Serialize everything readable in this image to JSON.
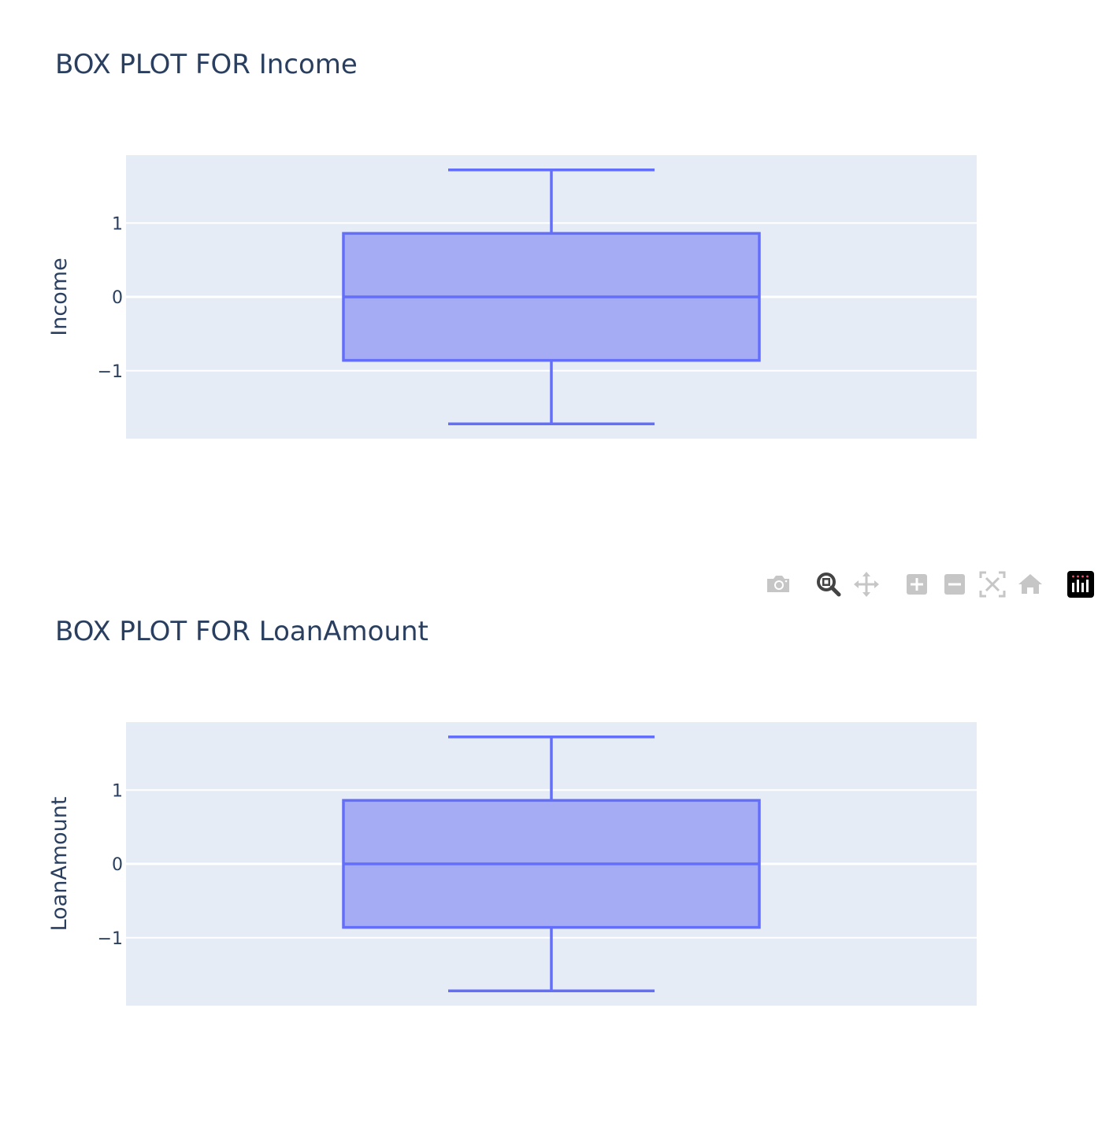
{
  "toolbar": {
    "buttons": [
      {
        "name": "download-plot-button",
        "icon": "camera-icon"
      },
      {
        "name": "zoom-button",
        "icon": "zoom-icon",
        "active": true
      },
      {
        "name": "pan-button",
        "icon": "pan-icon"
      },
      {
        "name": "zoom-in-button",
        "icon": "zoom-in-icon"
      },
      {
        "name": "zoom-out-button",
        "icon": "zoom-out-icon"
      },
      {
        "name": "autoscale-button",
        "icon": "autoscale-icon"
      },
      {
        "name": "reset-axes-button",
        "icon": "home-icon"
      },
      {
        "name": "plotly-logo-button",
        "icon": "plotly-logo-icon"
      }
    ]
  },
  "colors": {
    "box_line": "#636efa",
    "box_fill": "#a5acf4",
    "plot_bg": "#e5ecf6",
    "grid": "#ffffff",
    "text": "#2a3f5f"
  },
  "chart_data": [
    {
      "type": "box",
      "title": "BOX PLOT FOR Income",
      "ylabel": "Income",
      "xlabel": "",
      "ylim": [
        -1.92,
        1.92
      ],
      "yticks": [
        {
          "value": 1,
          "label": "1"
        },
        {
          "value": 0,
          "label": "0"
        },
        {
          "value": -1,
          "label": "−1"
        }
      ],
      "grid": true,
      "stats": {
        "lowerfence": -1.72,
        "q1": -0.86,
        "median": 0,
        "q3": 0.86,
        "upperfence": 1.72
      }
    },
    {
      "type": "box",
      "title": "BOX PLOT FOR LoanAmount",
      "ylabel": "LoanAmount",
      "xlabel": "",
      "ylim": [
        -1.92,
        1.92
      ],
      "yticks": [
        {
          "value": 1,
          "label": "1"
        },
        {
          "value": 0,
          "label": "0"
        },
        {
          "value": -1,
          "label": "−1"
        }
      ],
      "grid": true,
      "stats": {
        "lowerfence": -1.72,
        "q1": -0.86,
        "median": 0,
        "q3": 0.86,
        "upperfence": 1.72
      }
    }
  ]
}
